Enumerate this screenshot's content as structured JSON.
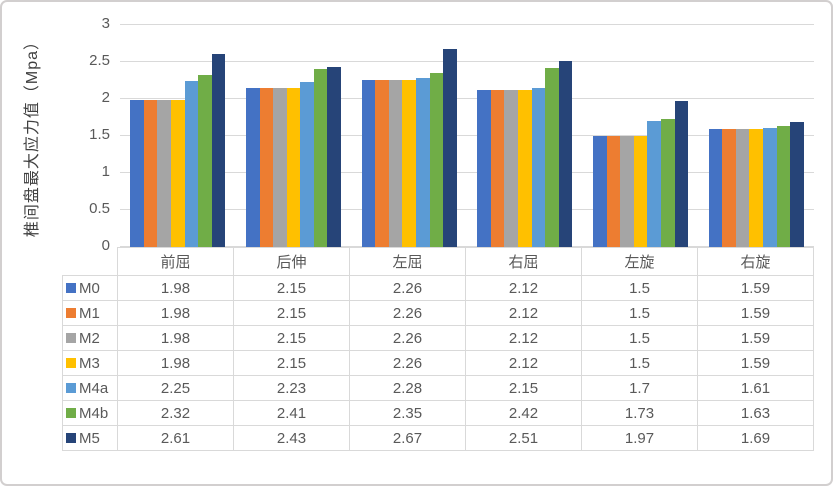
{
  "chart_data": {
    "type": "bar",
    "title": "",
    "xlabel": "",
    "ylabel": "椎间盘最大应力值（Mpa）",
    "ylim": [
      0,
      3
    ],
    "yticks": [
      3,
      2.5,
      2,
      1.5,
      1,
      0.5,
      0
    ],
    "grid": true,
    "legend_position": "table-left-column",
    "categories": [
      "前屈",
      "后伸",
      "左屈",
      "右屈",
      "左旋",
      "右旋"
    ],
    "series": [
      {
        "name": "M0",
        "color": "#4472C4",
        "values": [
          "1.98",
          "2.15",
          "2.26",
          "2.12",
          "1.5",
          "1.59"
        ]
      },
      {
        "name": "M1",
        "color": "#ED7D31",
        "values": [
          "1.98",
          "2.15",
          "2.26",
          "2.12",
          "1.5",
          "1.59"
        ]
      },
      {
        "name": "M2",
        "color": "#A5A5A5",
        "values": [
          "1.98",
          "2.15",
          "2.26",
          "2.12",
          "1.5",
          "1.59"
        ]
      },
      {
        "name": "M3",
        "color": "#FFC000",
        "values": [
          "1.98",
          "2.15",
          "2.26",
          "2.12",
          "1.5",
          "1.59"
        ]
      },
      {
        "name": "M4a",
        "color": "#5B9BD5",
        "values": [
          "2.25",
          "2.23",
          "2.28",
          "2.15",
          "1.7",
          "1.61"
        ]
      },
      {
        "name": "M4b",
        "color": "#70AD47",
        "values": [
          "2.32",
          "2.41",
          "2.35",
          "2.42",
          "1.73",
          "1.63"
        ]
      },
      {
        "name": "M5",
        "color": "#264478",
        "values": [
          "2.61",
          "2.43",
          "2.67",
          "2.51",
          "1.97",
          "1.69"
        ]
      }
    ]
  },
  "colors": {
    "gridline": "#D9D9D9",
    "axis_text": "#595959",
    "axis_title_text": "#404040",
    "table_border": "#D9D9D9",
    "table_text": "#595959",
    "frame_border": "#D2CFCF",
    "background": "#FFFFFF"
  }
}
